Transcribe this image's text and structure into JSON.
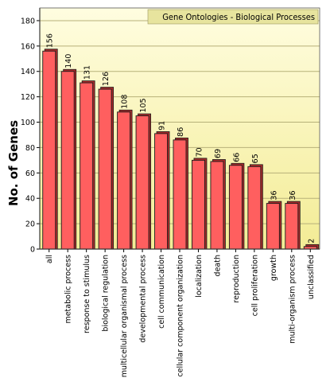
{
  "chart_data": {
    "type": "bar",
    "title": "Gene Ontologies - Biological Processes",
    "xlabel": "",
    "ylabel": "No. of Genes",
    "ylim": [
      0,
      190
    ],
    "yticks": [
      0,
      20,
      40,
      60,
      80,
      100,
      120,
      140,
      160,
      180
    ],
    "grid": "horizontal",
    "categories": [
      "all",
      "metabolic process",
      "response to stimulus",
      "biological regulation",
      "multicellular organismal process",
      "developmental process",
      "cell communication",
      "cellular component organization",
      "localization",
      "death",
      "reproduction",
      "cell proliferation",
      "growth",
      "multi-organism process",
      "unclassified"
    ],
    "values": [
      156,
      140,
      131,
      126,
      108,
      105,
      91,
      86,
      70,
      69,
      66,
      65,
      36,
      36,
      2
    ],
    "colors": {
      "plot_bg_top": "#fffde0",
      "plot_bg_bottom": "#f3ec95",
      "bar_fill": "#ff5f5f",
      "bar_shade": "#a82b2b",
      "bar_outline": "#1a1a1a",
      "grid": "#b7b17a",
      "title_box": "#e7e49e"
    }
  }
}
